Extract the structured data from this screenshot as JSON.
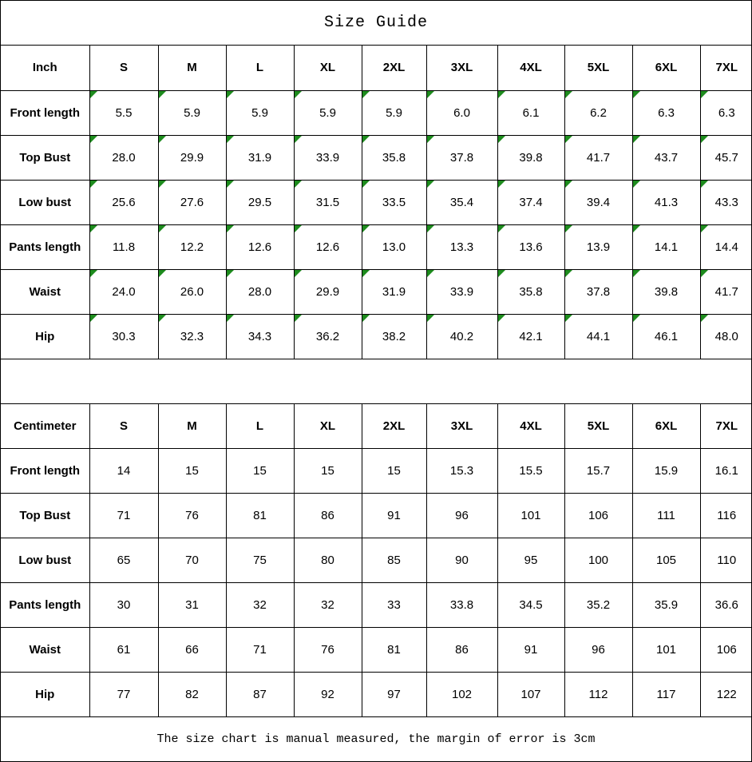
{
  "title": "Size Guide",
  "footer_note": "The size chart is manual measured, the margin of error is 3cm",
  "colors": {
    "background": "#ffffff",
    "border": "#000000",
    "text": "#000000",
    "flag_green": "#1e8c1e"
  },
  "chart_data": [
    {
      "type": "table",
      "unit": "Inch",
      "columns": [
        "Inch",
        "S",
        "M",
        "L",
        "XL",
        "2XL",
        "3XL",
        "4XL",
        "5XL",
        "6XL",
        "7XL"
      ],
      "value_flags": true,
      "rows": [
        {
          "label": "Front length",
          "values": [
            "5.5",
            "5.9",
            "5.9",
            "5.9",
            "5.9",
            "6.0",
            "6.1",
            "6.2",
            "6.3",
            "6.3"
          ]
        },
        {
          "label": "Top Bust",
          "values": [
            "28.0",
            "29.9",
            "31.9",
            "33.9",
            "35.8",
            "37.8",
            "39.8",
            "41.7",
            "43.7",
            "45.7"
          ]
        },
        {
          "label": "Low bust",
          "values": [
            "25.6",
            "27.6",
            "29.5",
            "31.5",
            "33.5",
            "35.4",
            "37.4",
            "39.4",
            "41.3",
            "43.3"
          ]
        },
        {
          "label": "Pants length",
          "values": [
            "11.8",
            "12.2",
            "12.6",
            "12.6",
            "13.0",
            "13.3",
            "13.6",
            "13.9",
            "14.1",
            "14.4"
          ]
        },
        {
          "label": "Waist",
          "values": [
            "24.0",
            "26.0",
            "28.0",
            "29.9",
            "31.9",
            "33.9",
            "35.8",
            "37.8",
            "39.8",
            "41.7"
          ]
        },
        {
          "label": "Hip",
          "values": [
            "30.3",
            "32.3",
            "34.3",
            "36.2",
            "38.2",
            "40.2",
            "42.1",
            "44.1",
            "46.1",
            "48.0"
          ]
        }
      ]
    },
    {
      "type": "table",
      "unit": "Centimeter",
      "columns": [
        "Centimeter",
        "S",
        "M",
        "L",
        "XL",
        "2XL",
        "3XL",
        "4XL",
        "5XL",
        "6XL",
        "7XL"
      ],
      "value_flags": false,
      "rows": [
        {
          "label": "Front length",
          "values": [
            "14",
            "15",
            "15",
            "15",
            "15",
            "15.3",
            "15.5",
            "15.7",
            "15.9",
            "16.1"
          ]
        },
        {
          "label": "Top Bust",
          "values": [
            "71",
            "76",
            "81",
            "86",
            "91",
            "96",
            "101",
            "106",
            "111",
            "116"
          ]
        },
        {
          "label": "Low bust",
          "values": [
            "65",
            "70",
            "75",
            "80",
            "85",
            "90",
            "95",
            "100",
            "105",
            "110"
          ]
        },
        {
          "label": "Pants length",
          "values": [
            "30",
            "31",
            "32",
            "32",
            "33",
            "33.8",
            "34.5",
            "35.2",
            "35.9",
            "36.6"
          ]
        },
        {
          "label": "Waist",
          "values": [
            "61",
            "66",
            "71",
            "76",
            "81",
            "86",
            "91",
            "96",
            "101",
            "106"
          ]
        },
        {
          "label": "Hip",
          "values": [
            "77",
            "82",
            "87",
            "92",
            "97",
            "102",
            "107",
            "112",
            "117",
            "122"
          ]
        }
      ]
    }
  ]
}
